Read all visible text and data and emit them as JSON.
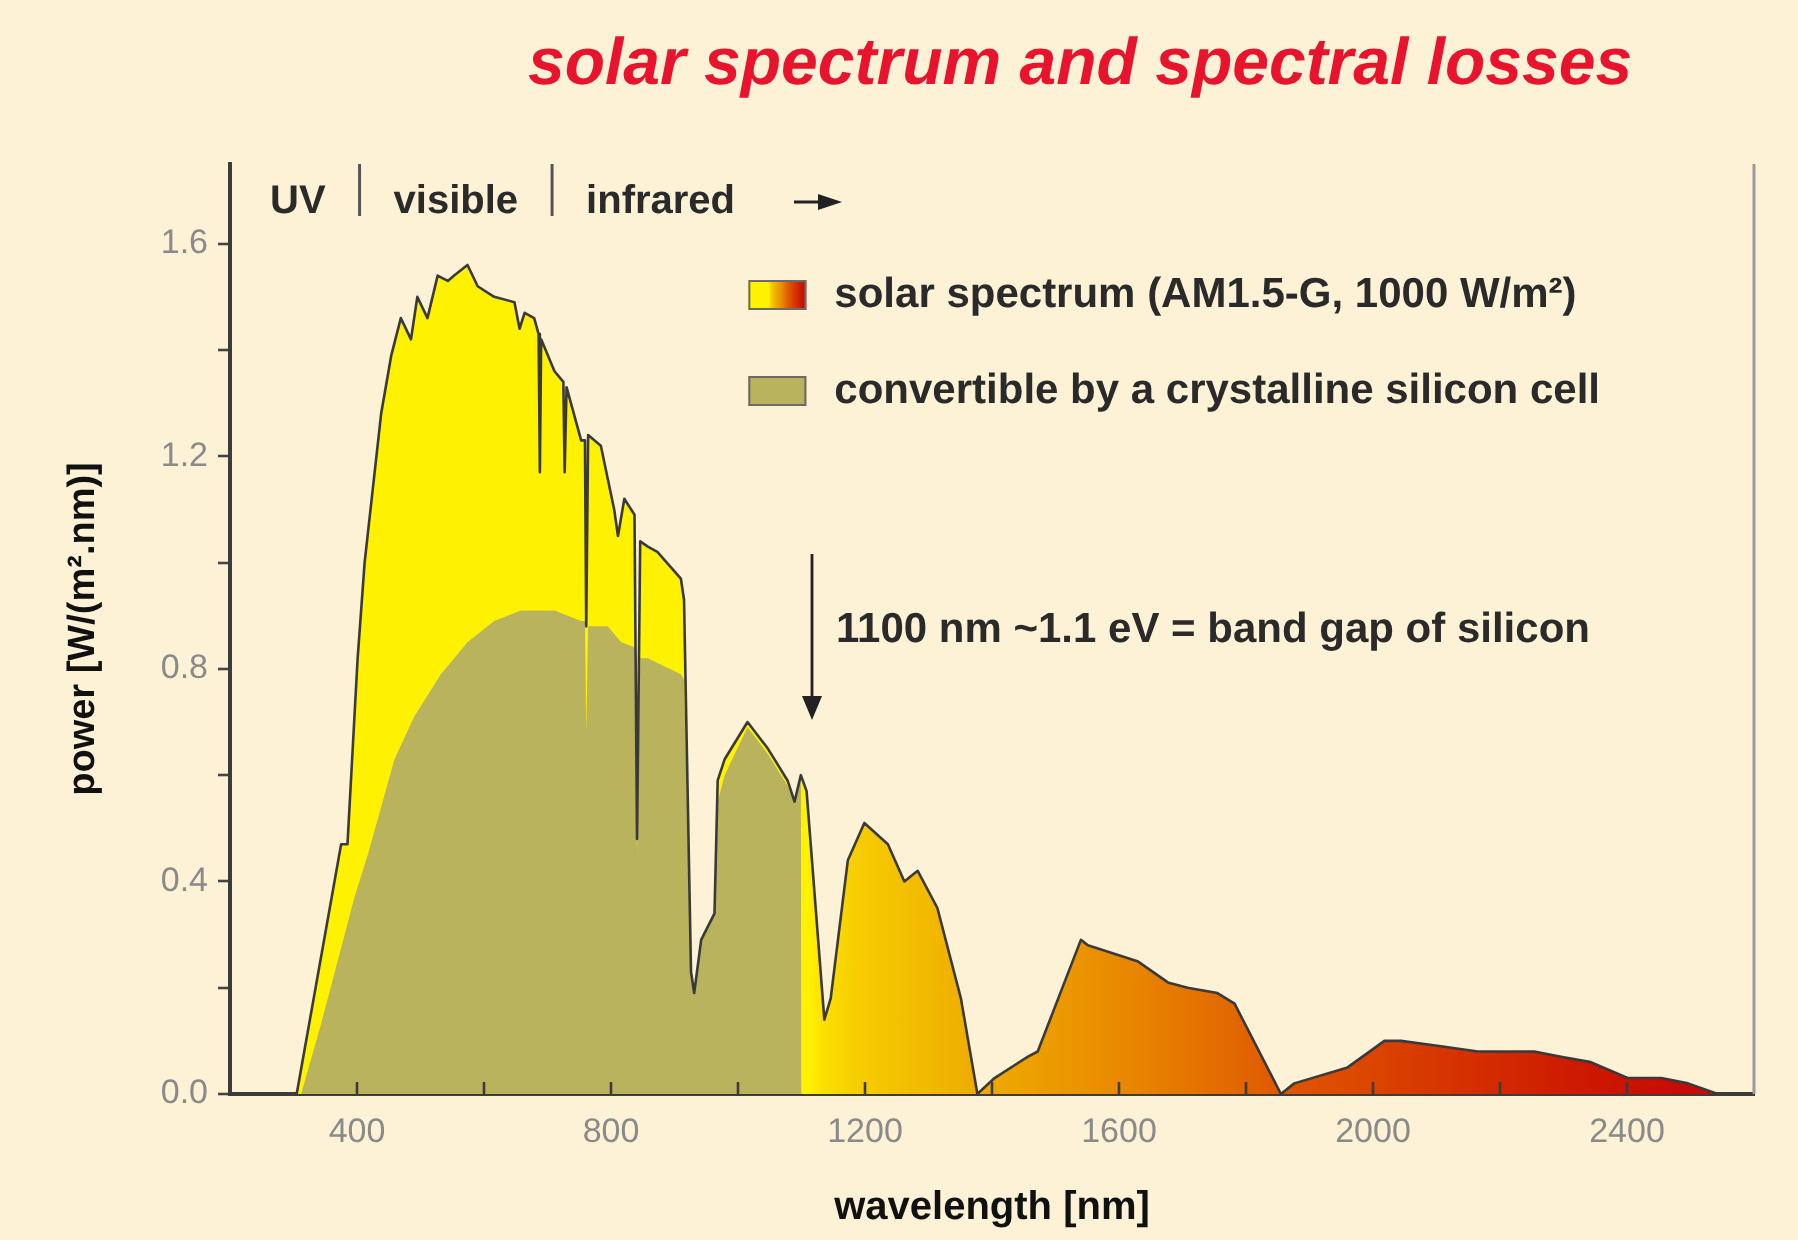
{
  "chart_data": {
    "type": "area",
    "title": "solar spectrum and spectral losses",
    "xlabel": "wavelength [nm]",
    "ylabel": "power [W/(m².nm)]",
    "xlim": [
      200,
      2600
    ],
    "ylim": [
      0,
      1.75
    ],
    "xticks": [
      400,
      {
        "value": 600,
        "label": null
      },
      800,
      {
        "value": 1000,
        "label": null
      },
      1200,
      {
        "value": 1400,
        "label": null
      },
      1600,
      {
        "value": 1800,
        "label": null
      },
      2000,
      {
        "value": 2200,
        "label": null
      },
      2400
    ],
    "yticks": [
      {
        "value": 0,
        "label": "0.0"
      },
      {
        "value": 0.2,
        "label": null
      },
      0.4,
      {
        "value": 0.6,
        "label": null
      },
      0.8,
      {
        "value": 1,
        "label": null
      },
      1.2,
      {
        "value": 1.4,
        "label": null
      },
      1.6
    ],
    "series": [
      {
        "name": "solar spectrum (AM1.5-G, 1000 W/m²)",
        "x": [
          305,
          375,
          385,
          401,
          412,
          438,
          454,
          469,
          485,
          495,
          511,
          527,
          543,
          553,
          574,
          590,
          616,
          648,
          656,
          664,
          679,
          686,
          688,
          690,
          711,
          725,
          727,
          730,
          753,
          759,
          761,
          764,
          784,
          805,
          811,
          821,
          837,
          841,
          846,
          858,
          873,
          910,
          915,
          926,
          931,
          942,
          963,
          968,
          979,
          1015,
          1047,
          1078,
          1089,
          1099,
          1108,
          1136,
          1146,
          1173,
          1199,
          1236,
          1262,
          1283,
          1314,
          1351,
          1377,
          1404,
          1456,
          1472,
          1540,
          1551,
          1629,
          1677,
          1708,
          1755,
          1782,
          1855,
          1876,
          1960,
          2018,
          2044,
          2107,
          2165,
          2191,
          2254,
          2296,
          2343,
          2401,
          2454,
          2496,
          2543
        ],
        "values": [
          0,
          0.47,
          0.47,
          0.82,
          1.0,
          1.28,
          1.39,
          1.46,
          1.42,
          1.5,
          1.46,
          1.54,
          1.53,
          1.54,
          1.56,
          1.52,
          1.5,
          1.49,
          1.44,
          1.47,
          1.46,
          1.43,
          1.17,
          1.42,
          1.36,
          1.34,
          1.17,
          1.33,
          1.23,
          1.23,
          0.88,
          1.24,
          1.22,
          1.1,
          1.05,
          1.12,
          1.09,
          0.48,
          1.04,
          1.03,
          1.02,
          0.97,
          0.93,
          0.23,
          0.19,
          0.29,
          0.34,
          0.59,
          0.63,
          0.7,
          0.65,
          0.59,
          0.55,
          0.6,
          0.57,
          0.14,
          0.18,
          0.44,
          0.51,
          0.47,
          0.4,
          0.42,
          0.35,
          0.18,
          0,
          0.03,
          0.07,
          0.08,
          0.29,
          0.28,
          0.25,
          0.21,
          0.2,
          0.19,
          0.17,
          0,
          0.02,
          0.05,
          0.1,
          0.1,
          0.09,
          0.08,
          0.08,
          0.08,
          0.07,
          0.06,
          0.03,
          0.03,
          0.02,
          0
        ],
        "colors": [
          "#fff200",
          "#fff200",
          "#fff200",
          "#fff200",
          "#fff200",
          "#fff200",
          "#fff200",
          "#fff200",
          "#fff200",
          "#fff200",
          "#fff200",
          "#fff200",
          "#fff200",
          "#fff200",
          "#fff200",
          "#fff200",
          "#fff200",
          "#fff200",
          "#fff200",
          "#fff200",
          "#fff200",
          "#fff200",
          "#fff200",
          "#fff200",
          "#fff200",
          "#fff200",
          "#fff200",
          "#fff200",
          "#fff200",
          "#fff200",
          "#fff200",
          "#fff200",
          "#fff200",
          "#fff200",
          "#fff200",
          "#fff200",
          "#fff200",
          "#fff200",
          "#fff200",
          "#fff200",
          "#fff200",
          "#fff200",
          "#fff200",
          "#fff200",
          "#fff200",
          "#fff200",
          "#fff200",
          "#fff200",
          "#fff200",
          "#fff200",
          "#fff200",
          "#fff200",
          "#fff200",
          "#fff200",
          "#fff200",
          "#fcdf00",
          "#fbdb00",
          "#f8d200",
          "#f6cb00",
          "#f4c400",
          "#f3bf00",
          "#f2bc00",
          "#f1b600",
          "#f0b000",
          "#efab00",
          "#eea700",
          "#eda100",
          "#ec9e00",
          "#ea9400",
          "#ea9200",
          "#e88400",
          "#e67b00",
          "#e57500",
          "#e36c00",
          "#e26700",
          "#e05800",
          "#df5400",
          "#dc4a00",
          "#da4200",
          "#d93e00",
          "#d63500",
          "#d42e00",
          "#d32a00",
          "#d02200",
          "#ce1d00",
          "#cc1800",
          "#ca1200",
          "#c80e00",
          "#c60c00",
          "#c50a00"
        ]
      },
      {
        "name": "convertible by a crystalline silicon cell",
        "color": "#b9b35e",
        "x": [
          312,
          343,
          396,
          417,
          459,
          490,
          532,
          574,
          616,
          658,
          711,
          753,
          759,
          761,
          764,
          795,
          816,
          838,
          841,
          846,
          858,
          910,
          915,
          926,
          931,
          942,
          963,
          968,
          979,
          1015,
          1047,
          1078,
          1089,
          1099,
          1100
        ],
        "values": [
          0,
          0.13,
          0.37,
          0.45,
          0.63,
          0.71,
          0.79,
          0.85,
          0.89,
          0.91,
          0.91,
          0.89,
          0.89,
          0.68,
          0.88,
          0.88,
          0.85,
          0.84,
          0.45,
          0.82,
          0.82,
          0.79,
          0.78,
          0.23,
          0.19,
          0.29,
          0.34,
          0.55,
          0.6,
          0.69,
          0.64,
          0.58,
          0.55,
          0.59,
          0
        ]
      }
    ],
    "annotations": [
      "UV",
      "visible",
      "infrared",
      "1100 nm ~1.1 eV = band gap of silicon"
    ],
    "legend": "top right",
    "grid": false,
    "marker": "none"
  }
}
